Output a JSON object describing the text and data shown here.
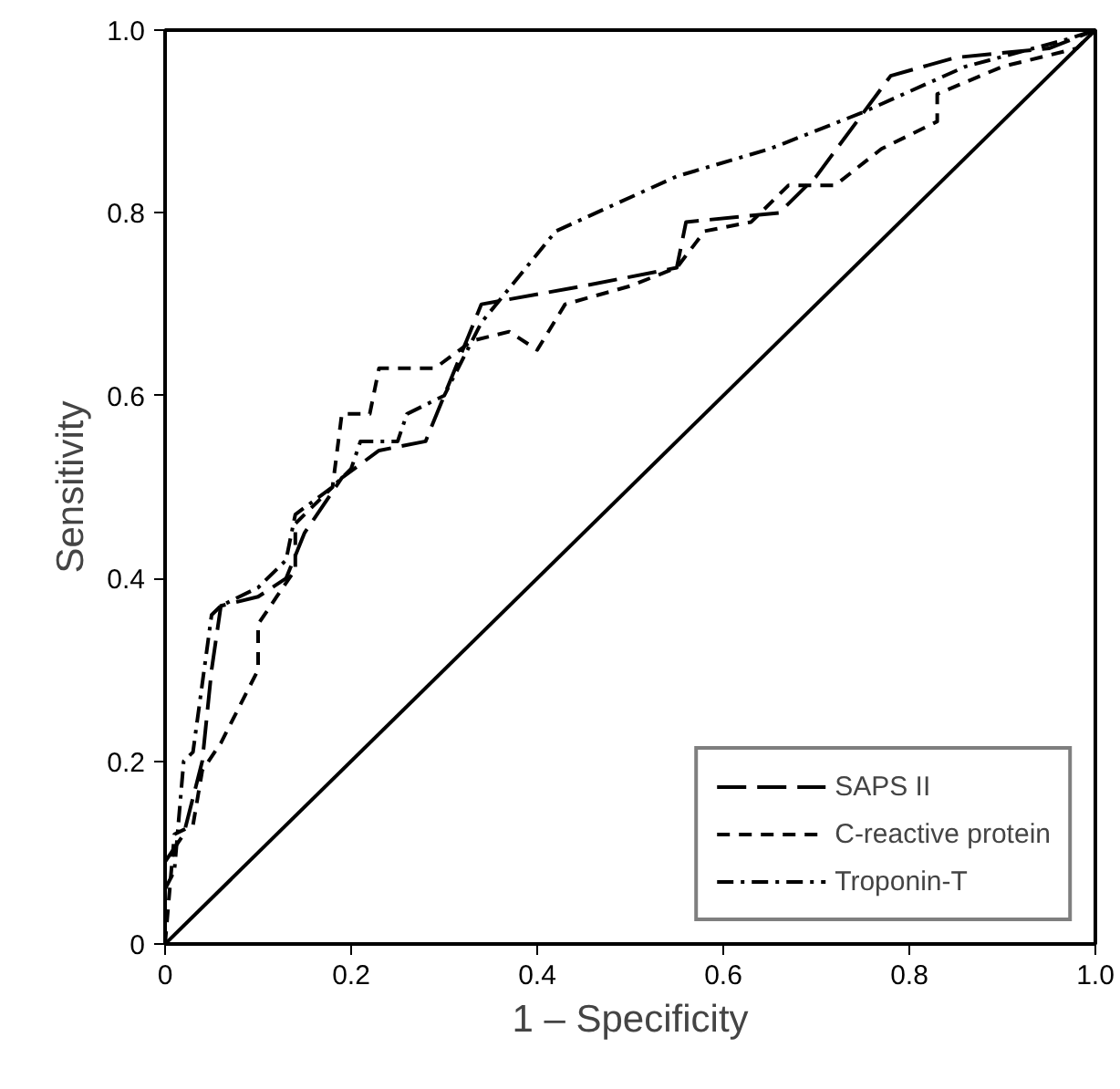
{
  "chart_data": {
    "type": "line",
    "xlabel": "1 – Specificity",
    "ylabel": "Sensitivity",
    "xlim": [
      0,
      1
    ],
    "ylim": [
      0,
      1
    ],
    "xticks": [
      0,
      0.2,
      0.4,
      0.6,
      0.8,
      {
        "value": 1,
        "label": "1.0"
      }
    ],
    "yticks": [
      0,
      0.2,
      0.4,
      0.6,
      0.8,
      {
        "value": 1,
        "label": "1.0"
      }
    ],
    "grid": false,
    "legend": "bottom right",
    "marker": "none",
    "series": [
      {
        "name": "SAPS II",
        "color": "#000000",
        "line_style": "longdash",
        "x": [
          0,
          0.02,
          0.04,
          0.05,
          0.06,
          0.1,
          0.13,
          0.15,
          0.19,
          0.23,
          0.28,
          0.34,
          0.45,
          0.55,
          0.56,
          0.66,
          0.7,
          0.78,
          0.85,
          0.95,
          1
        ],
        "values": [
          0.09,
          0.12,
          0.2,
          0.3,
          0.37,
          0.38,
          0.4,
          0.45,
          0.51,
          0.54,
          0.55,
          0.7,
          0.72,
          0.74,
          0.79,
          0.8,
          0.84,
          0.95,
          0.97,
          0.98,
          1
        ]
      },
      {
        "name": "C-reactive protein",
        "color": "#000000",
        "line_style": "dashed",
        "x": [
          0,
          0.01,
          0.03,
          0.04,
          0.06,
          0.08,
          0.1,
          0.1,
          0.12,
          0.14,
          0.14,
          0.18,
          0.19,
          0.22,
          0.23,
          0.29,
          0.33,
          0.37,
          0.4,
          0.43,
          0.5,
          0.55,
          0.58,
          0.63,
          0.67,
          0.72,
          0.77,
          0.83,
          0.83,
          0.9,
          0.98,
          1
        ],
        "values": [
          0,
          0.12,
          0.13,
          0.19,
          0.22,
          0.26,
          0.3,
          0.35,
          0.38,
          0.41,
          0.46,
          0.5,
          0.58,
          0.58,
          0.63,
          0.63,
          0.66,
          0.67,
          0.65,
          0.7,
          0.72,
          0.74,
          0.78,
          0.79,
          0.83,
          0.83,
          0.87,
          0.9,
          0.93,
          0.96,
          0.98,
          1
        ]
      },
      {
        "name": "Troponin-T",
        "color": "#000000",
        "line_style": "dashdot",
        "x": [
          0,
          0.01,
          0.02,
          0.03,
          0.05,
          0.06,
          0.1,
          0.13,
          0.14,
          0.18,
          0.2,
          0.21,
          0.25,
          0.26,
          0.3,
          0.34,
          0.42,
          0.55,
          0.65,
          0.75,
          0.86,
          0.97,
          1
        ],
        "values": [
          0.06,
          0.08,
          0.2,
          0.21,
          0.36,
          0.37,
          0.39,
          0.42,
          0.47,
          0.5,
          0.52,
          0.55,
          0.55,
          0.58,
          0.6,
          0.68,
          0.78,
          0.84,
          0.87,
          0.91,
          0.96,
          0.99,
          1
        ]
      },
      {
        "color": "#000000",
        "line_style": "solid",
        "x": [
          0,
          1
        ],
        "values": [
          0,
          1
        ]
      }
    ]
  }
}
